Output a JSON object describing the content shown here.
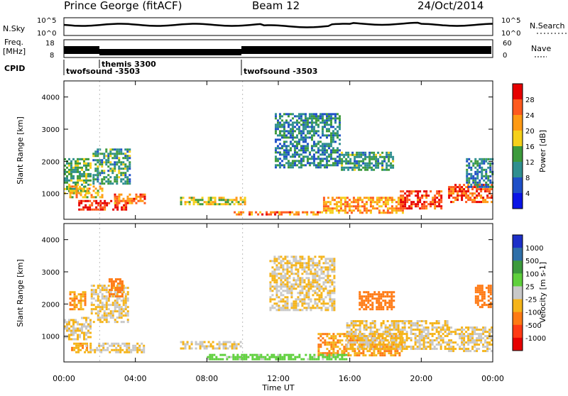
{
  "header": {
    "station": "Prince George (fitACF)",
    "beam": "Beam 12",
    "date": "24/Oct/2014"
  },
  "strips": {
    "nsky_label": "N.Sky",
    "nsky_ticks": [
      "10^5",
      "10^0"
    ],
    "nsearch_label": "N.Search",
    "nsearch_ticks": [
      "10^5",
      "10^0"
    ],
    "freq_label": "Freq.",
    "freq_unit": "[MHz]",
    "freq_ticks": [
      "18",
      "8"
    ],
    "nave_label": "Nave",
    "nave_ticks": [
      "60",
      "0"
    ],
    "cpid_label": "CPID",
    "cpid_entries": [
      "twofsound -3503",
      "themis 3300",
      "twofsound -3503"
    ]
  },
  "chart_data": [
    {
      "type": "heatmap",
      "panel": "power",
      "ylabel": "Slant Range [km]",
      "y_ticks": [
        "1000",
        "2000",
        "3000",
        "4000"
      ],
      "ylim": [
        200,
        4500
      ],
      "x_ticks": [
        "00:00",
        "04:00",
        "08:00",
        "12:00",
        "16:00",
        "20:00",
        "00:00"
      ],
      "xlim_hours": [
        0,
        24
      ],
      "colorbar": {
        "label": "Power [dB]",
        "ticks": [
          "28",
          "24",
          "20",
          "16",
          "12",
          "8",
          "4"
        ],
        "colors": [
          "#e60000",
          "#ff5a1e",
          "#ff9a14",
          "#f5d01a",
          "#3c9a3c",
          "#2f8f8f",
          "#1e4fc8",
          "#0a14e6"
        ]
      },
      "regions": [
        {
          "x": [
            0.0,
            1.5
          ],
          "y": [
            1000,
            2100
          ],
          "value": 14
        },
        {
          "x": [
            1.6,
            3.8
          ],
          "y": [
            1300,
            2400
          ],
          "value": 12
        },
        {
          "x": [
            0.8,
            3.5
          ],
          "y": [
            500,
            800
          ],
          "value": 28
        },
        {
          "x": [
            0.3,
            2.2
          ],
          "y": [
            850,
            1250
          ],
          "value": 20
        },
        {
          "x": [
            2.8,
            4.6
          ],
          "y": [
            700,
            1000
          ],
          "value": 24
        },
        {
          "x": [
            6.5,
            10.2
          ],
          "y": [
            650,
            900
          ],
          "value": 18
        },
        {
          "x": [
            11.8,
            15.5
          ],
          "y": [
            1800,
            3500
          ],
          "value": 10
        },
        {
          "x": [
            9.5,
            14.5
          ],
          "y": [
            300,
            450
          ],
          "value": 24
        },
        {
          "x": [
            14.5,
            19.0
          ],
          "y": [
            400,
            900
          ],
          "value": 22
        },
        {
          "x": [
            18.8,
            21.2
          ],
          "y": [
            500,
            1100
          ],
          "value": 28
        },
        {
          "x": [
            21.5,
            24.0
          ],
          "y": [
            700,
            1300
          ],
          "value": 26
        },
        {
          "x": [
            15.5,
            18.5
          ],
          "y": [
            1700,
            2300
          ],
          "value": 12
        },
        {
          "x": [
            22.5,
            24.0
          ],
          "y": [
            1200,
            2100
          ],
          "value": 10
        }
      ]
    },
    {
      "type": "heatmap",
      "panel": "velocity",
      "ylabel": "Slant Range [km]",
      "y_ticks": [
        "1000",
        "2000",
        "3000",
        "4000"
      ],
      "ylim": [
        200,
        4500
      ],
      "x_ticks": [
        "00:00",
        "04:00",
        "08:00",
        "12:00",
        "16:00",
        "20:00",
        "00:00"
      ],
      "xlim_hours": [
        0,
        24
      ],
      "xlabel": "Time UT",
      "colorbar": {
        "label": "Velocity [m s-1]",
        "ticks": [
          "1000",
          "500",
          "100",
          "25",
          "-25",
          "-100",
          "-500",
          "-1000"
        ],
        "colors": [
          "#1c2fc8",
          "#2f6fa8",
          "#3c9a3c",
          "#5fd03c",
          "#c8c8c8",
          "#f5b41a",
          "#ff7a14",
          "#ff3a14",
          "#e60000"
        ]
      },
      "regions": [
        {
          "x": [
            0.0,
            1.6
          ],
          "y": [
            900,
            1600
          ],
          "value": -25
        },
        {
          "x": [
            1.5,
            3.6
          ],
          "y": [
            1400,
            2600
          ],
          "value": -25
        },
        {
          "x": [
            0.3,
            1.3
          ],
          "y": [
            1800,
            2400
          ],
          "value": -100
        },
        {
          "x": [
            2.5,
            3.3
          ],
          "y": [
            2200,
            2800
          ],
          "value": -300
        },
        {
          "x": [
            0.4,
            1.3
          ],
          "y": [
            500,
            800
          ],
          "value": -100
        },
        {
          "x": [
            1.2,
            4.5
          ],
          "y": [
            500,
            800
          ],
          "value": -25
        },
        {
          "x": [
            6.5,
            10.0
          ],
          "y": [
            600,
            850
          ],
          "value": -25
        },
        {
          "x": [
            11.5,
            15.2
          ],
          "y": [
            1800,
            3500
          ],
          "value": -25
        },
        {
          "x": [
            14.2,
            19.0
          ],
          "y": [
            400,
            1100
          ],
          "value": -100
        },
        {
          "x": [
            15.8,
            21.5
          ],
          "y": [
            600,
            1500
          ],
          "value": -25
        },
        {
          "x": [
            16.5,
            18.5
          ],
          "y": [
            1800,
            2400
          ],
          "value": -300
        },
        {
          "x": [
            21.5,
            24.0
          ],
          "y": [
            500,
            1300
          ],
          "value": -25
        },
        {
          "x": [
            23.0,
            24.0
          ],
          "y": [
            1900,
            2600
          ],
          "value": -300
        },
        {
          "x": [
            8.0,
            16.0
          ],
          "y": [
            250,
            450
          ],
          "value": 50
        }
      ]
    }
  ]
}
